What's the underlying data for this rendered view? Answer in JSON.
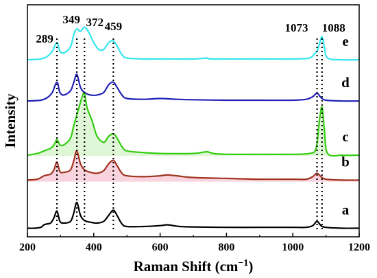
{
  "chart_data": {
    "type": "line",
    "xlabel": "Raman Shift (cm",
    "xlabel_sup": "−1",
    "xlabel_close": ")",
    "ylabel": "Intensity",
    "xlim": [
      200,
      1200
    ],
    "xticks": [
      200,
      400,
      600,
      800,
      1000,
      1200
    ],
    "xtick_labels": [
      "200",
      "400",
      "600",
      "800",
      "1000",
      "1200"
    ],
    "grid": false,
    "y_ticks_shown": false,
    "peak_markers": [
      {
        "position": 289,
        "label": "289"
      },
      {
        "position": 349,
        "label": "349"
      },
      {
        "position": 372,
        "label": "372"
      },
      {
        "position": 459,
        "label": "459"
      },
      {
        "position": 1073,
        "label": "1073"
      },
      {
        "position": 1088,
        "label": "1088"
      }
    ],
    "series": [
      {
        "name": "a",
        "color": "#000000",
        "baseline": 0.0,
        "points": [
          [
            200,
            0.0
          ],
          [
            220,
            0.0
          ],
          [
            240,
            0.01
          ],
          [
            250,
            0.04
          ],
          [
            260,
            0.05
          ],
          [
            270,
            0.06
          ],
          [
            280,
            0.12
          ],
          [
            289,
            0.2
          ],
          [
            298,
            0.08
          ],
          [
            310,
            0.06
          ],
          [
            330,
            0.08
          ],
          [
            340,
            0.18
          ],
          [
            349,
            0.3
          ],
          [
            360,
            0.15
          ],
          [
            372,
            0.09
          ],
          [
            390,
            0.07
          ],
          [
            410,
            0.06
          ],
          [
            430,
            0.08
          ],
          [
            445,
            0.15
          ],
          [
            459,
            0.21
          ],
          [
            470,
            0.15
          ],
          [
            485,
            0.05
          ],
          [
            500,
            0.02
          ],
          [
            550,
            0.02
          ],
          [
            600,
            0.03
          ],
          [
            620,
            0.04
          ],
          [
            640,
            0.03
          ],
          [
            660,
            0.02
          ],
          [
            700,
            0.015
          ],
          [
            800,
            0.01
          ],
          [
            900,
            0.01
          ],
          [
            1000,
            0.01
          ],
          [
            1040,
            0.01
          ],
          [
            1060,
            0.03
          ],
          [
            1073,
            0.08
          ],
          [
            1085,
            0.03
          ],
          [
            1100,
            0.01
          ],
          [
            1150,
            0.0
          ],
          [
            1200,
            0.0
          ]
        ]
      },
      {
        "name": "b",
        "color": "#a0321e",
        "fill": "#f5b8c8",
        "baseline": 0.55,
        "points": [
          [
            200,
            0.01
          ],
          [
            230,
            0.02
          ],
          [
            250,
            0.06
          ],
          [
            270,
            0.08
          ],
          [
            280,
            0.13
          ],
          [
            289,
            0.22
          ],
          [
            298,
            0.11
          ],
          [
            310,
            0.1
          ],
          [
            330,
            0.13
          ],
          [
            340,
            0.24
          ],
          [
            349,
            0.35
          ],
          [
            360,
            0.2
          ],
          [
            372,
            0.13
          ],
          [
            390,
            0.1
          ],
          [
            410,
            0.09
          ],
          [
            430,
            0.12
          ],
          [
            445,
            0.2
          ],
          [
            459,
            0.24
          ],
          [
            470,
            0.18
          ],
          [
            485,
            0.09
          ],
          [
            500,
            0.06
          ],
          [
            550,
            0.05
          ],
          [
            600,
            0.06
          ],
          [
            620,
            0.07
          ],
          [
            650,
            0.06
          ],
          [
            700,
            0.04
          ],
          [
            800,
            0.03
          ],
          [
            900,
            0.02
          ],
          [
            1000,
            0.02
          ],
          [
            1040,
            0.02
          ],
          [
            1060,
            0.05
          ],
          [
            1073,
            0.09
          ],
          [
            1085,
            0.05
          ],
          [
            1100,
            0.02
          ],
          [
            1150,
            0.01
          ],
          [
            1200,
            0.01
          ]
        ]
      },
      {
        "name": "c",
        "color": "#33cc0f",
        "fill": "#c9f2bd",
        "baseline": 0.85,
        "points": [
          [
            200,
            0.0
          ],
          [
            230,
            0.02
          ],
          [
            250,
            0.05
          ],
          [
            270,
            0.08
          ],
          [
            280,
            0.12
          ],
          [
            289,
            0.18
          ],
          [
            298,
            0.12
          ],
          [
            310,
            0.12
          ],
          [
            330,
            0.2
          ],
          [
            340,
            0.35
          ],
          [
            355,
            0.55
          ],
          [
            365,
            0.68
          ],
          [
            372,
            0.72
          ],
          [
            380,
            0.55
          ],
          [
            395,
            0.4
          ],
          [
            410,
            0.22
          ],
          [
            430,
            0.15
          ],
          [
            445,
            0.22
          ],
          [
            459,
            0.25
          ],
          [
            470,
            0.2
          ],
          [
            485,
            0.1
          ],
          [
            500,
            0.05
          ],
          [
            550,
            0.03
          ],
          [
            600,
            0.02
          ],
          [
            700,
            0.02
          ],
          [
            740,
            0.04
          ],
          [
            760,
            0.02
          ],
          [
            800,
            0.01
          ],
          [
            900,
            0.01
          ],
          [
            1000,
            0.01
          ],
          [
            1050,
            0.02
          ],
          [
            1070,
            0.08
          ],
          [
            1080,
            0.4
          ],
          [
            1088,
            0.56
          ],
          [
            1095,
            0.3
          ],
          [
            1105,
            0.02
          ],
          [
            1150,
            0.0
          ],
          [
            1200,
            0.0
          ]
        ]
      },
      {
        "name": "d",
        "color": "#2222b8",
        "baseline": 1.48,
        "points": [
          [
            200,
            0.0
          ],
          [
            240,
            0.01
          ],
          [
            260,
            0.04
          ],
          [
            275,
            0.1
          ],
          [
            289,
            0.22
          ],
          [
            298,
            0.1
          ],
          [
            310,
            0.07
          ],
          [
            330,
            0.12
          ],
          [
            340,
            0.22
          ],
          [
            349,
            0.31
          ],
          [
            360,
            0.16
          ],
          [
            372,
            0.1
          ],
          [
            390,
            0.07
          ],
          [
            410,
            0.07
          ],
          [
            430,
            0.1
          ],
          [
            445,
            0.19
          ],
          [
            459,
            0.22
          ],
          [
            470,
            0.16
          ],
          [
            485,
            0.07
          ],
          [
            500,
            0.03
          ],
          [
            550,
            0.02
          ],
          [
            600,
            0.03
          ],
          [
            650,
            0.02
          ],
          [
            700,
            0.015
          ],
          [
            800,
            0.01
          ],
          [
            900,
            0.01
          ],
          [
            1000,
            0.01
          ],
          [
            1040,
            0.02
          ],
          [
            1060,
            0.05
          ],
          [
            1073,
            0.09
          ],
          [
            1085,
            0.04
          ],
          [
            1100,
            0.01
          ],
          [
            1150,
            0.0
          ],
          [
            1200,
            0.0
          ]
        ]
      },
      {
        "name": "e",
        "color": "#33e6ee",
        "baseline": 1.96,
        "points": [
          [
            200,
            0.0
          ],
          [
            240,
            0.01
          ],
          [
            260,
            0.04
          ],
          [
            275,
            0.1
          ],
          [
            289,
            0.2
          ],
          [
            298,
            0.1
          ],
          [
            310,
            0.08
          ],
          [
            330,
            0.15
          ],
          [
            340,
            0.3
          ],
          [
            349,
            0.36
          ],
          [
            360,
            0.33
          ],
          [
            372,
            0.38
          ],
          [
            385,
            0.32
          ],
          [
            400,
            0.2
          ],
          [
            415,
            0.12
          ],
          [
            430,
            0.12
          ],
          [
            445,
            0.2
          ],
          [
            459,
            0.22
          ],
          [
            470,
            0.16
          ],
          [
            485,
            0.06
          ],
          [
            500,
            0.02
          ],
          [
            550,
            0.01
          ],
          [
            600,
            0.01
          ],
          [
            700,
            0.01
          ],
          [
            740,
            0.02
          ],
          [
            760,
            0.01
          ],
          [
            900,
            0.01
          ],
          [
            1000,
            0.01
          ],
          [
            1050,
            0.02
          ],
          [
            1065,
            0.07
          ],
          [
            1073,
            0.1
          ],
          [
            1080,
            0.18
          ],
          [
            1088,
            0.27
          ],
          [
            1095,
            0.15
          ],
          [
            1105,
            0.02
          ],
          [
            1150,
            0.0
          ],
          [
            1200,
            0.0
          ]
        ]
      }
    ]
  }
}
